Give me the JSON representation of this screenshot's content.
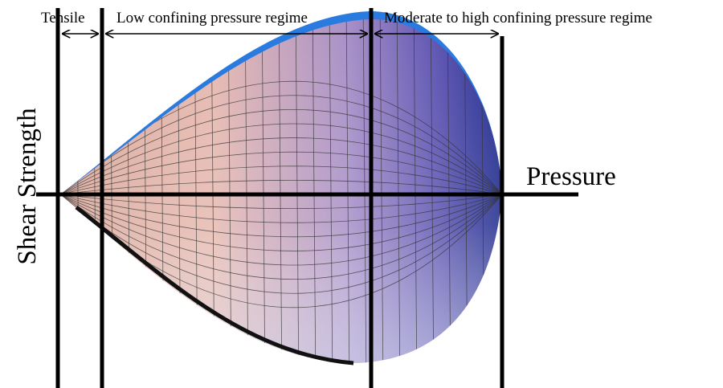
{
  "regions": {
    "tensile": "Tensile",
    "low": "Low confining pressure regime",
    "high": "Moderate to high confining pressure regime"
  },
  "axes": {
    "x": "Pressure",
    "y": "Shear Strength"
  }
}
